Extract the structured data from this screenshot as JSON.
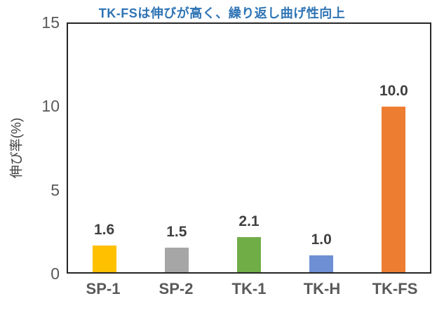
{
  "chart_data": {
    "type": "bar",
    "title": "TK-FSは伸びが高く、繰り返し曲げ性向上",
    "title_color": "#2E74B5",
    "ylabel": "伸び率(%)",
    "xlabel": "",
    "categories": [
      "SP-1",
      "SP-2",
      "TK-1",
      "TK-H",
      "TK-FS"
    ],
    "values": [
      1.6,
      1.5,
      2.1,
      1.0,
      10.0
    ],
    "value_labels": [
      "1.6",
      "1.5",
      "2.1",
      "1.0",
      "10.0"
    ],
    "colors": [
      "#FFC000",
      "#A6A6A6",
      "#70AD47",
      "#6E8FD3",
      "#ED7D31"
    ],
    "ylim": [
      0,
      15
    ],
    "yticks": [
      "15",
      "10",
      "5",
      "0"
    ],
    "ytick_values": [
      15,
      10,
      5,
      0
    ],
    "grid": false,
    "legend": "none",
    "axis_text_color": "#595959",
    "data_label_color": "#404040",
    "plot_border_color": "#262626"
  }
}
